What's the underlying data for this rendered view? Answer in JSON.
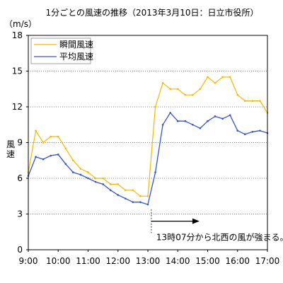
{
  "chart_data": {
    "type": "line",
    "title": "1分ごとの風速の推移（2013年3月10日：日立市役所）",
    "ylabel": "風速",
    "yunit": "（m/s）",
    "ylim": [
      0,
      18
    ],
    "yticks": [
      0,
      3,
      6,
      9,
      12,
      15,
      18
    ],
    "xlim": [
      "9:00",
      "17:00"
    ],
    "xticks": [
      "9:00",
      "10:00",
      "11:00",
      "12:00",
      "13:00",
      "14:00",
      "15:00",
      "16:00",
      "17:00"
    ],
    "grid": true,
    "legend": "top-left",
    "annotation": {
      "text": "13時07分から北西の風が強まる。",
      "at": "13:07"
    },
    "series": [
      {
        "name": "瞬間風速",
        "color": "#f5b800",
        "x": [
          "9:00",
          "9:15",
          "9:30",
          "9:45",
          "10:00",
          "10:15",
          "10:30",
          "10:45",
          "11:00",
          "11:15",
          "11:30",
          "11:45",
          "12:00",
          "12:15",
          "12:30",
          "12:45",
          "13:00",
          "13:15",
          "13:30",
          "13:45",
          "14:00",
          "14:15",
          "14:30",
          "14:45",
          "15:00",
          "15:15",
          "15:30",
          "15:45",
          "16:00",
          "16:15",
          "16:30",
          "16:45",
          "17:00"
        ],
        "y": [
          6.5,
          10.0,
          9.0,
          9.5,
          9.5,
          8.5,
          7.5,
          6.8,
          6.5,
          6.0,
          6.0,
          5.5,
          5.5,
          5.0,
          5.0,
          4.5,
          4.5,
          12.0,
          14.0,
          13.5,
          13.5,
          13.0,
          13.0,
          13.5,
          14.5,
          14.0,
          14.5,
          14.5,
          13.0,
          12.5,
          12.5,
          12.5,
          11.5
        ]
      },
      {
        "name": "平均風速",
        "color": "#3355cc",
        "x": [
          "9:00",
          "9:15",
          "9:30",
          "9:45",
          "10:00",
          "10:15",
          "10:30",
          "10:45",
          "11:00",
          "11:15",
          "11:30",
          "11:45",
          "12:00",
          "12:15",
          "12:30",
          "12:45",
          "13:00",
          "13:15",
          "13:30",
          "13:45",
          "14:00",
          "14:15",
          "14:30",
          "14:45",
          "15:00",
          "15:15",
          "15:30",
          "15:45",
          "16:00",
          "16:15",
          "16:30",
          "16:45",
          "17:00"
        ],
        "y": [
          6.2,
          7.8,
          7.6,
          7.9,
          8.0,
          7.2,
          6.5,
          6.3,
          6.0,
          5.7,
          5.5,
          5.0,
          4.6,
          4.3,
          4.0,
          4.0,
          3.8,
          6.5,
          10.5,
          11.5,
          10.8,
          10.8,
          10.5,
          10.2,
          10.8,
          11.2,
          11.0,
          11.3,
          10.0,
          9.7,
          9.9,
          10.0,
          9.8
        ]
      }
    ]
  }
}
